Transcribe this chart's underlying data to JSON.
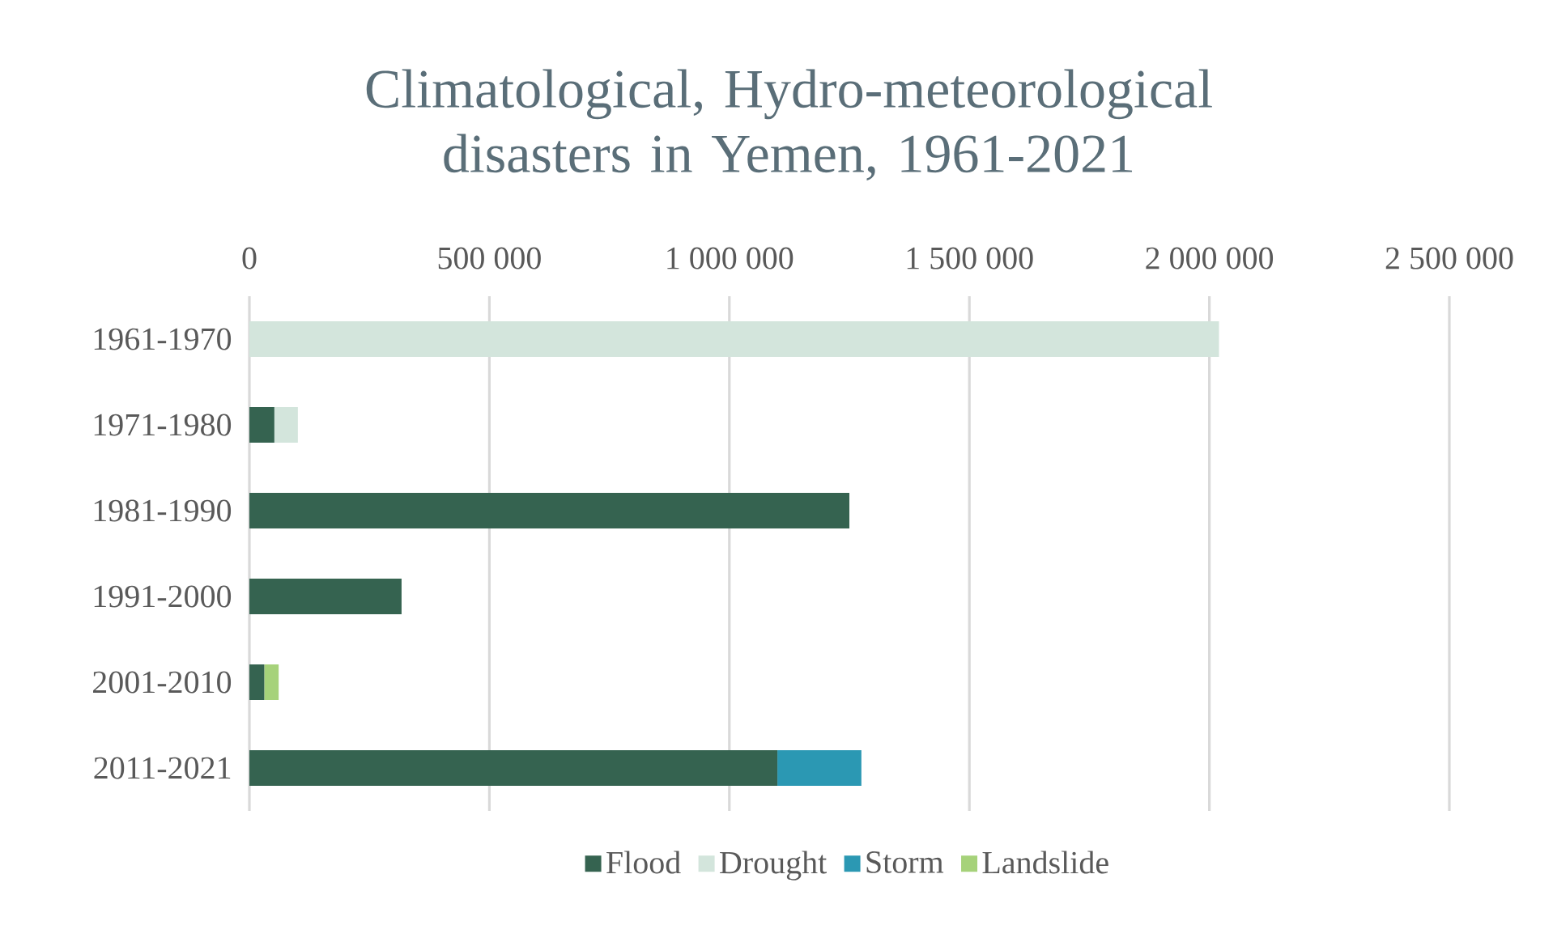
{
  "chart_data": {
    "type": "bar",
    "orientation": "horizontal",
    "stacked": true,
    "title": "Climatological, Hydro-meteorological disasters in Yemen, 1961-2021",
    "categories": [
      "1961-1970",
      "1971-1980",
      "1981-1990",
      "1991-2000",
      "2001-2010",
      "2011-2021"
    ],
    "series": [
      {
        "name": "Flood",
        "color": "#356350",
        "values": [
          0,
          52000,
          1250000,
          317000,
          31000,
          1100000
        ]
      },
      {
        "name": "Drought",
        "color": "#d3e5dc",
        "values": [
          2020000,
          49000,
          0,
          0,
          0,
          0
        ]
      },
      {
        "name": "Storm",
        "color": "#2b98b3",
        "values": [
          0,
          0,
          0,
          0,
          0,
          175000
        ]
      },
      {
        "name": "Landslide",
        "color": "#a6d27a",
        "values": [
          0,
          0,
          0,
          0,
          30000,
          0
        ]
      }
    ],
    "xlim": [
      0,
      2500000
    ],
    "xticks": [
      0,
      {
        "value": 500000,
        "label": "500 000"
      },
      {
        "value": 1000000,
        "label": "1 000 000"
      },
      {
        "value": 1500000,
        "label": "1 500 000"
      },
      {
        "value": 2000000,
        "label": "2 000 000"
      },
      {
        "value": 2500000,
        "label": "2 500 000"
      }
    ],
    "grid": "x",
    "legend": "bottom"
  }
}
